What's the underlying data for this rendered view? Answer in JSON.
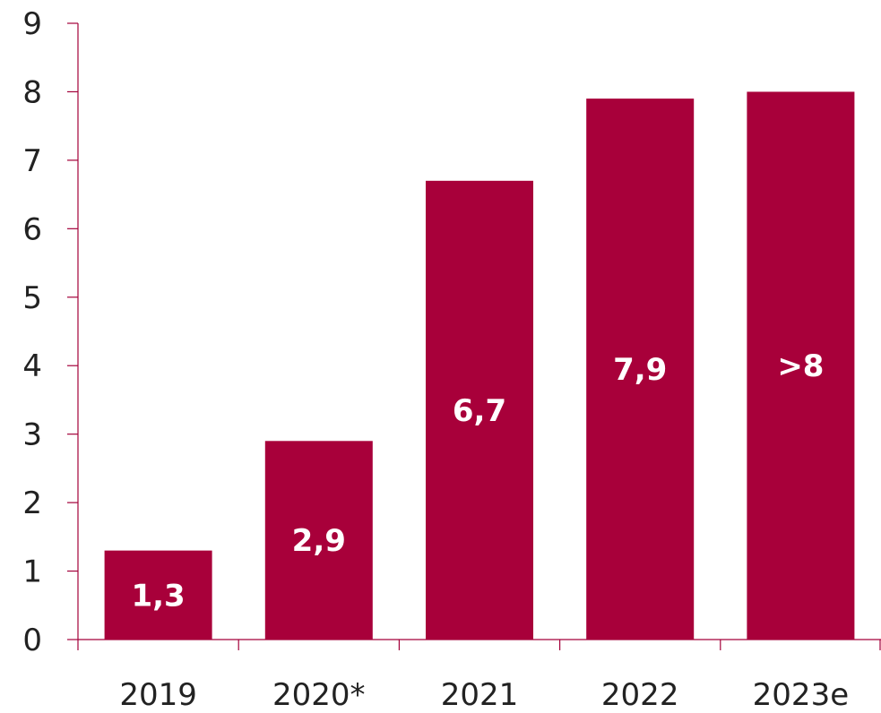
{
  "chart_data": {
    "type": "bar",
    "categories": [
      "2019",
      "2020*",
      "2021",
      "2022",
      "2023e"
    ],
    "values": [
      1.3,
      2.9,
      6.7,
      7.9,
      8
    ],
    "data_labels": [
      "1,3",
      "2,9",
      "6,7",
      "7,9",
      ">8"
    ],
    "ylim": [
      0,
      9
    ],
    "yticks": [
      0,
      1,
      2,
      3,
      4,
      5,
      6,
      7,
      8,
      9
    ],
    "title": "",
    "xlabel": "",
    "ylabel": "",
    "grid": false,
    "legend": "none",
    "bar_color": "#a8003a",
    "axis_color": "#a3003a"
  }
}
